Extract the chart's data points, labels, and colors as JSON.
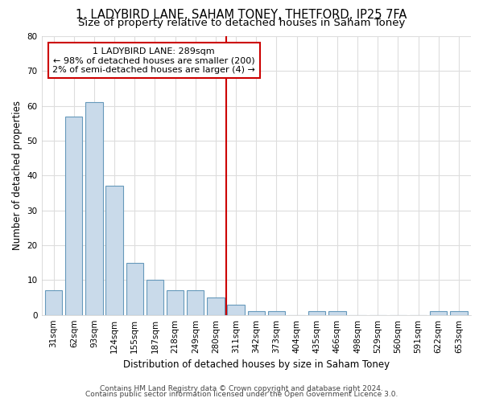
{
  "title": "1, LADYBIRD LANE, SAHAM TONEY, THETFORD, IP25 7FA",
  "subtitle": "Size of property relative to detached houses in Saham Toney",
  "xlabel": "Distribution of detached houses by size in Saham Toney",
  "ylabel": "Number of detached properties",
  "categories": [
    "31sqm",
    "62sqm",
    "93sqm",
    "124sqm",
    "155sqm",
    "187sqm",
    "218sqm",
    "249sqm",
    "280sqm",
    "311sqm",
    "342sqm",
    "373sqm",
    "404sqm",
    "435sqm",
    "466sqm",
    "498sqm",
    "529sqm",
    "560sqm",
    "591sqm",
    "622sqm",
    "653sqm"
  ],
  "values": [
    7,
    57,
    61,
    37,
    15,
    10,
    7,
    7,
    5,
    3,
    1,
    1,
    0,
    1,
    1,
    0,
    0,
    0,
    0,
    1,
    1
  ],
  "bar_color": "#c9daea",
  "bar_edge_color": "#6699bb",
  "vline_x": 8.5,
  "vline_color": "#cc0000",
  "annot_line1": "1 LADYBIRD LANE: 289sqm",
  "annot_line2": "← 98% of detached houses are smaller (200)",
  "annot_line3": "2% of semi-detached houses are larger (4) →",
  "annot_box_color": "#cc0000",
  "annot_bg_color": "#ffffff",
  "ylim": [
    0,
    80
  ],
  "yticks": [
    0,
    10,
    20,
    30,
    40,
    50,
    60,
    70,
    80
  ],
  "bg_color": "#ffffff",
  "grid_color": "#dddddd",
  "footer1": "Contains HM Land Registry data © Crown copyright and database right 2024.",
  "footer2": "Contains public sector information licensed under the Open Government Licence 3.0.",
  "title_fontsize": 10.5,
  "subtitle_fontsize": 9.5,
  "tick_fontsize": 7.5,
  "axis_label_fontsize": 8.5,
  "footer_fontsize": 6.5
}
